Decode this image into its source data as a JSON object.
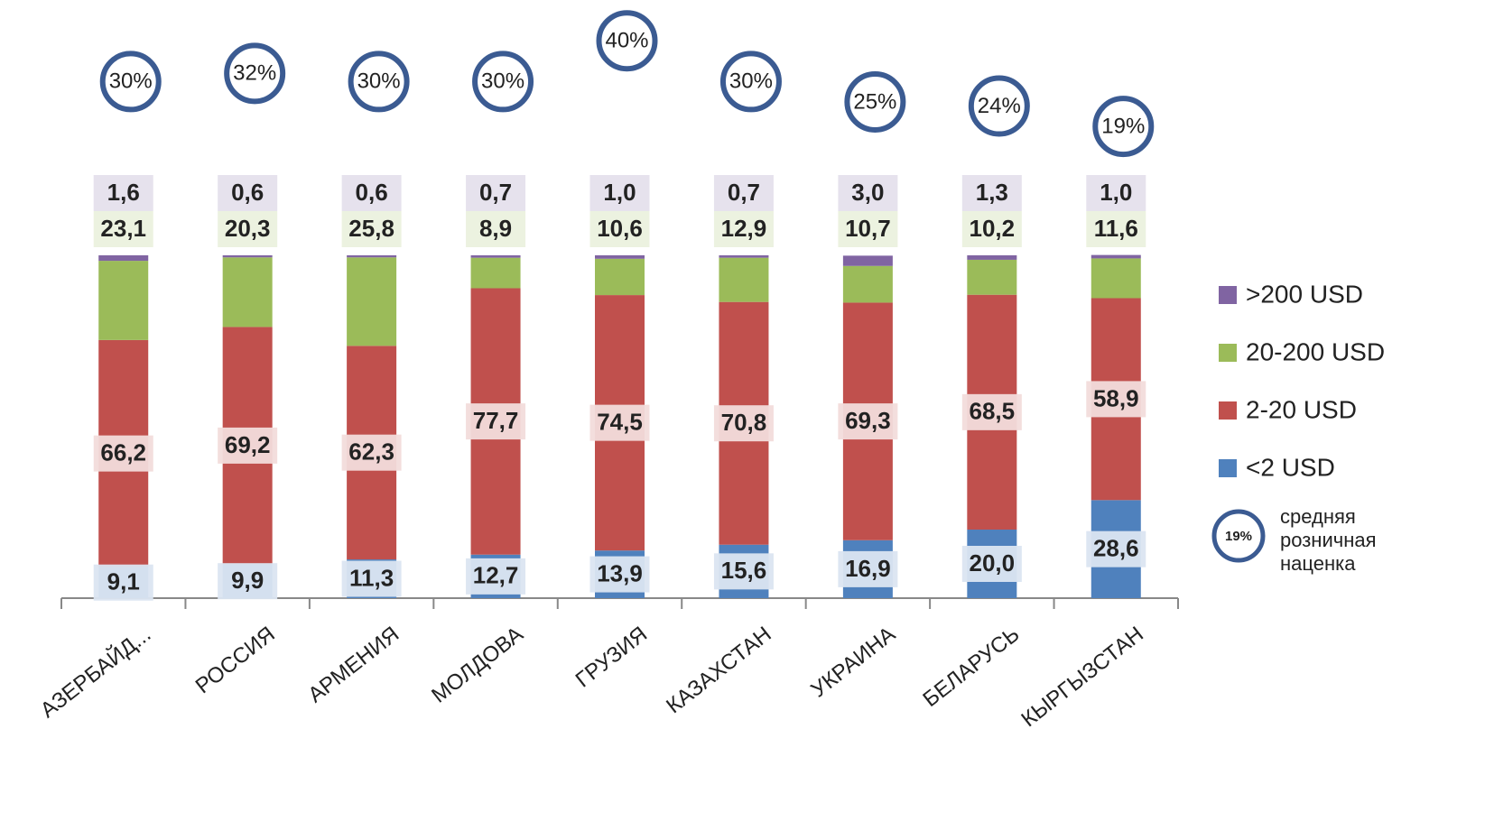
{
  "chart_data": {
    "type": "stacked_bar",
    "categories": [
      "АЗЕРБАЙД...",
      "РОССИЯ",
      "АРМЕНИЯ",
      "МОЛДОВА",
      "ГРУЗИЯ",
      "КАЗАХСТАН",
      "УКРАИНА",
      "БЕЛАРУСЬ",
      "КЫРГЫЗСТАН"
    ],
    "ylim": [
      0,
      100
    ],
    "series": [
      {
        "name": "<2 USD",
        "color": "#4f81bd",
        "label_color": "#dbe5f1",
        "values": [
          9.1,
          9.9,
          11.3,
          12.7,
          13.9,
          15.6,
          16.9,
          20.0,
          28.6
        ],
        "value_labels": [
          "9,1",
          "9,9",
          "11,3",
          "12,7",
          "13,9",
          "15,6",
          "16,9",
          "20,0",
          "28,6"
        ]
      },
      {
        "name": "2-20 USD",
        "color": "#c0504d",
        "label_color": "#f2dcdb",
        "values": [
          66.2,
          69.2,
          62.3,
          77.7,
          74.5,
          70.8,
          69.3,
          68.5,
          58.9
        ],
        "value_labels": [
          "66,2",
          "69,2",
          "62,3",
          "77,7",
          "74,5",
          "70,8",
          "69,3",
          "68,5",
          "58,9"
        ]
      },
      {
        "name": "20-200 USD",
        "color": "#9bbb59",
        "label_color": "#ebf1de",
        "values": [
          23.1,
          20.3,
          25.8,
          8.9,
          10.6,
          12.9,
          10.7,
          10.2,
          11.6
        ],
        "value_labels": [
          "23,1",
          "20,3",
          "25,8",
          "8,9",
          "10,6",
          "12,9",
          "10,7",
          "10,2",
          "11,6"
        ]
      },
      {
        "name": ">200 USD",
        "color": "#8064a2",
        "label_color": "#e5e0ec",
        "values": [
          1.6,
          0.6,
          0.6,
          0.7,
          1.0,
          0.7,
          3.0,
          1.3,
          1.0
        ],
        "value_labels": [
          "1,6",
          "0,6",
          "0,6",
          "0,7",
          "1,0",
          "0,7",
          "3,0",
          "1,3",
          "1,0"
        ]
      }
    ],
    "markup": {
      "name": "средняя розничная наценка",
      "sample_label": "19%",
      "color": "#3b5b92",
      "values": [
        30,
        32,
        30,
        30,
        40,
        30,
        25,
        24,
        19
      ],
      "value_labels": [
        "30%",
        "32%",
        "30%",
        "30%",
        "40%",
        "30%",
        "25%",
        "24%",
        "19%"
      ]
    }
  }
}
